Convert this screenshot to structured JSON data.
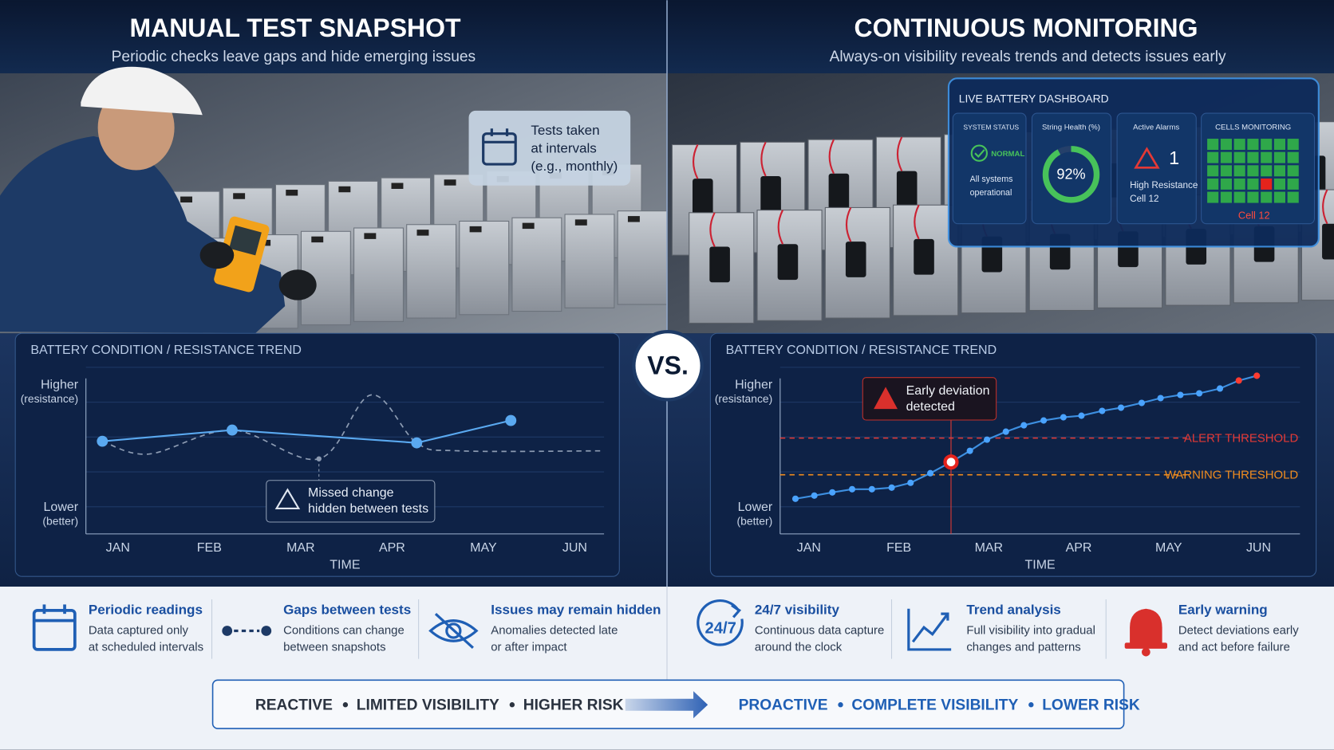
{
  "left": {
    "title": "MANUAL TEST SNAPSHOT",
    "subtitle": "Periodic checks leave gaps and hide emerging issues",
    "callout": [
      "Tests taken",
      "at intervals",
      "(e.g., monthly)"
    ],
    "chart": {
      "type": "line",
      "title": "BATTERY CONDITION / RESISTANCE TREND",
      "y_high": [
        "Higher",
        "(resistance)"
      ],
      "y_low": [
        "Lower",
        "(better)"
      ],
      "x_label": "TIME",
      "categories": [
        "JAN",
        "FEB",
        "MAR",
        "APR",
        "MAY",
        "JUN"
      ],
      "xlim": [
        -0.35,
        5.32
      ],
      "ylim": [
        0,
        100
      ],
      "readings": {
        "x": [
          -0.17,
          1.25,
          3.27,
          4.3
        ],
        "values": [
          58,
          65,
          57,
          71
        ]
      },
      "actual": {
        "x": [
          -0.17,
          0.34,
          1.25,
          2.2,
          2.77,
          3.27,
          3.73,
          5.32
        ],
        "values": [
          58,
          50,
          65,
          47,
          87,
          57,
          52,
          52
        ]
      },
      "annotation": [
        "Missed change",
        "hidden between tests"
      ]
    }
  },
  "vs": "VS.",
  "right": {
    "title": "CONTINUOUS MONITORING",
    "subtitle": "Always-on visibility reveals trends and detects issues early",
    "dashboard": {
      "title": "LIVE BATTERY DASHBOARD",
      "status": {
        "label": "SYSTEM STATUS",
        "state": "NORMAL",
        "note": [
          "All systems",
          "operational"
        ]
      },
      "health": {
        "label": "String Health (%)",
        "value": 92,
        "value_label": "92%"
      },
      "alarms": {
        "label": "Active Alarms",
        "count": 1,
        "note": [
          "High Resistance",
          "Cell 12"
        ]
      },
      "cells": {
        "label": "CELLS MONITORING",
        "rows": 5,
        "cols": 7,
        "alert_cell": [
          3,
          4
        ],
        "alert_label": "Cell 12"
      }
    },
    "chart": {
      "type": "line",
      "title": "BATTERY CONDITION / RESISTANCE TREND",
      "y_high": [
        "Higher",
        "(resistance)"
      ],
      "y_low": [
        "Lower",
        "(better)"
      ],
      "x_label": "TIME",
      "categories": [
        "JAN",
        "FEB",
        "MAR",
        "APR",
        "MAY",
        "JUN"
      ],
      "xlim": [
        -0.32,
        5.46
      ],
      "ylim": [
        0,
        100
      ],
      "measurements": {
        "x": [
          -0.15,
          0.06,
          0.26,
          0.48,
          0.7,
          0.92,
          1.13,
          1.35,
          1.58,
          1.79,
          1.98,
          2.19,
          2.39,
          2.61,
          2.83,
          3.03,
          3.26,
          3.47,
          3.7,
          3.91,
          4.13,
          4.34,
          4.57,
          4.78,
          4.98
        ],
        "values": [
          22,
          24,
          26,
          28,
          28,
          29,
          32,
          38,
          45,
          52,
          59,
          64,
          68,
          71,
          73,
          74,
          77,
          79,
          82,
          85,
          87,
          88,
          91,
          96,
          99
        ]
      },
      "highlight_index": 8,
      "alert_from_index": 23,
      "thresholds": [
        {
          "label": "ALERT THRESHOLD",
          "value": 60,
          "color": "#e53935"
        },
        {
          "label": "WARNING THRESHOLD",
          "value": 37,
          "color": "#f08c1e"
        }
      ],
      "annotation": [
        "Early deviation",
        "detected"
      ]
    }
  },
  "features": [
    {
      "title": "Periodic readings",
      "lines": [
        "Data captured only",
        "at scheduled intervals"
      ]
    },
    {
      "title": "Gaps between tests",
      "lines": [
        "Conditions can change",
        "between snapshots"
      ]
    },
    {
      "title": "Issues may remain hidden",
      "lines": [
        "Anomalies detected late",
        "or after impact"
      ]
    },
    {
      "title": "24/7 visibility",
      "lines": [
        "Continuous data capture",
        "around the clock"
      ],
      "icon_text": "24/7"
    },
    {
      "title": "Trend analysis",
      "lines": [
        "Full visibility into gradual",
        "changes and patterns"
      ]
    },
    {
      "title": "Early warning",
      "lines": [
        "Detect deviations early",
        "and act before failure"
      ]
    }
  ],
  "banner": {
    "left": [
      "REACTIVE",
      "LIMITED VISIBILITY",
      "HIGHER RISK"
    ],
    "right": [
      "PROACTIVE",
      "COMPLETE VISIBILITY",
      "LOWER RISK"
    ]
  }
}
